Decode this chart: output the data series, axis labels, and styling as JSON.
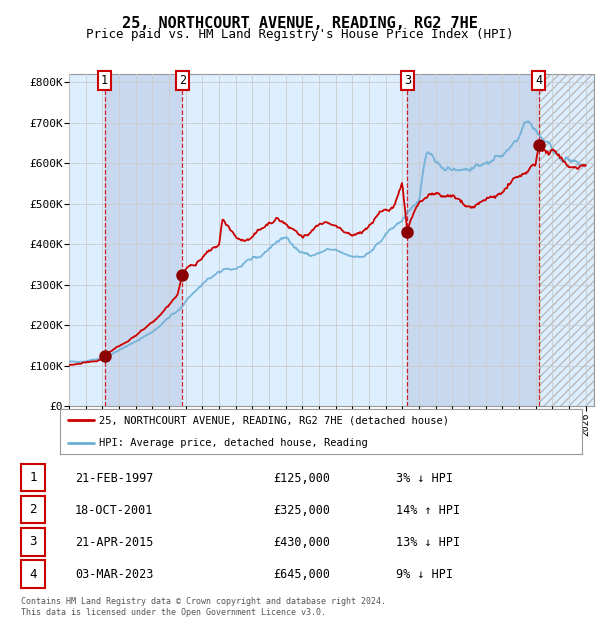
{
  "title": "25, NORTHCOURT AVENUE, READING, RG2 7HE",
  "subtitle": "Price paid vs. HM Land Registry's House Price Index (HPI)",
  "title_fontsize": 11,
  "subtitle_fontsize": 9,
  "ylim": [
    0,
    820000
  ],
  "yticks": [
    0,
    100000,
    200000,
    300000,
    400000,
    500000,
    600000,
    700000,
    800000
  ],
  "ytick_labels": [
    "£0",
    "£100K",
    "£200K",
    "£300K",
    "£400K",
    "£500K",
    "£600K",
    "£700K",
    "£800K"
  ],
  "xlim_start": 1995.0,
  "xlim_end": 2026.5,
  "hpi_line_color": "#6baed6",
  "price_line_color": "#cc0000",
  "dot_color": "#8b0000",
  "grid_color": "#cccccc",
  "bg_light": "#ddeeff",
  "bg_dark": "#c8d8ee",
  "transactions": [
    {
      "num": 1,
      "date_x": 1997.13,
      "price": 125000,
      "label": "1"
    },
    {
      "num": 2,
      "date_x": 2001.8,
      "price": 325000,
      "label": "2"
    },
    {
      "num": 3,
      "date_x": 2015.3,
      "price": 430000,
      "label": "3"
    },
    {
      "num": 4,
      "date_x": 2023.17,
      "price": 645000,
      "label": "4"
    }
  ],
  "legend_price_label": "25, NORTHCOURT AVENUE, READING, RG2 7HE (detached house)",
  "legend_hpi_label": "HPI: Average price, detached house, Reading",
  "table_rows": [
    {
      "num": "1",
      "date": "21-FEB-1997",
      "price": "£125,000",
      "hpi": "3% ↓ HPI"
    },
    {
      "num": "2",
      "date": "18-OCT-2001",
      "price": "£325,000",
      "hpi": "14% ↑ HPI"
    },
    {
      "num": "3",
      "date": "21-APR-2015",
      "price": "£430,000",
      "hpi": "13% ↓ HPI"
    },
    {
      "num": "4",
      "date": "03-MAR-2023",
      "price": "£645,000",
      "hpi": "9% ↓ HPI"
    }
  ],
  "footer": "Contains HM Land Registry data © Crown copyright and database right 2024.\nThis data is licensed under the Open Government Licence v3.0.",
  "hpi_points": [
    [
      1995.0,
      108000
    ],
    [
      1995.5,
      110000
    ],
    [
      1996.0,
      113000
    ],
    [
      1996.5,
      116000
    ],
    [
      1997.0,
      120000
    ],
    [
      1997.13,
      122000
    ],
    [
      1997.5,
      128000
    ],
    [
      1998.0,
      138000
    ],
    [
      1998.5,
      148000
    ],
    [
      1999.0,
      160000
    ],
    [
      1999.5,
      172000
    ],
    [
      2000.0,
      185000
    ],
    [
      2000.5,
      200000
    ],
    [
      2001.0,
      218000
    ],
    [
      2001.5,
      235000
    ],
    [
      2001.8,
      248000
    ],
    [
      2002.0,
      262000
    ],
    [
      2002.5,
      282000
    ],
    [
      2003.0,
      300000
    ],
    [
      2003.5,
      315000
    ],
    [
      2004.0,
      328000
    ],
    [
      2004.5,
      338000
    ],
    [
      2005.0,
      342000
    ],
    [
      2005.5,
      348000
    ],
    [
      2006.0,
      358000
    ],
    [
      2006.5,
      372000
    ],
    [
      2007.0,
      390000
    ],
    [
      2007.5,
      408000
    ],
    [
      2008.0,
      415000
    ],
    [
      2008.5,
      400000
    ],
    [
      2009.0,
      382000
    ],
    [
      2009.5,
      370000
    ],
    [
      2010.0,
      378000
    ],
    [
      2010.5,
      385000
    ],
    [
      2011.0,
      380000
    ],
    [
      2011.5,
      372000
    ],
    [
      2012.0,
      368000
    ],
    [
      2012.5,
      372000
    ],
    [
      2013.0,
      382000
    ],
    [
      2013.5,
      398000
    ],
    [
      2014.0,
      418000
    ],
    [
      2014.5,
      440000
    ],
    [
      2015.0,
      462000
    ],
    [
      2015.3,
      475000
    ],
    [
      2015.5,
      488000
    ],
    [
      2016.0,
      510000
    ],
    [
      2016.3,
      595000
    ],
    [
      2016.5,
      618000
    ],
    [
      2016.7,
      608000
    ],
    [
      2017.0,
      598000
    ],
    [
      2017.5,
      592000
    ],
    [
      2018.0,
      595000
    ],
    [
      2018.5,
      590000
    ],
    [
      2019.0,
      588000
    ],
    [
      2019.5,
      592000
    ],
    [
      2020.0,
      598000
    ],
    [
      2020.5,
      610000
    ],
    [
      2021.0,
      625000
    ],
    [
      2021.5,
      648000
    ],
    [
      2022.0,
      672000
    ],
    [
      2022.3,
      715000
    ],
    [
      2022.5,
      720000
    ],
    [
      2022.7,
      705000
    ],
    [
      2023.0,
      688000
    ],
    [
      2023.17,
      672000
    ],
    [
      2023.5,
      658000
    ],
    [
      2024.0,
      635000
    ],
    [
      2024.5,
      615000
    ],
    [
      2025.0,
      605000
    ],
    [
      2025.5,
      600000
    ],
    [
      2026.0,
      598000
    ]
  ],
  "pp_points": [
    [
      1995.0,
      100000
    ],
    [
      1995.5,
      103000
    ],
    [
      1996.0,
      106000
    ],
    [
      1996.5,
      110000
    ],
    [
      1997.0,
      118000
    ],
    [
      1997.13,
      125000
    ],
    [
      1997.5,
      135000
    ],
    [
      1998.0,
      148000
    ],
    [
      1998.5,
      162000
    ],
    [
      1999.0,
      175000
    ],
    [
      1999.5,
      190000
    ],
    [
      2000.0,
      208000
    ],
    [
      2000.5,
      228000
    ],
    [
      2001.0,
      250000
    ],
    [
      2001.5,
      278000
    ],
    [
      2001.8,
      325000
    ],
    [
      2002.0,
      340000
    ],
    [
      2002.5,
      355000
    ],
    [
      2003.0,
      368000
    ],
    [
      2003.5,
      378000
    ],
    [
      2004.0,
      395000
    ],
    [
      2004.2,
      460000
    ],
    [
      2004.5,
      445000
    ],
    [
      2005.0,
      418000
    ],
    [
      2005.5,
      408000
    ],
    [
      2006.0,
      415000
    ],
    [
      2006.5,
      430000
    ],
    [
      2007.0,
      455000
    ],
    [
      2007.5,
      460000
    ],
    [
      2008.0,
      448000
    ],
    [
      2008.5,
      432000
    ],
    [
      2009.0,
      415000
    ],
    [
      2009.5,
      420000
    ],
    [
      2010.0,
      435000
    ],
    [
      2010.5,
      448000
    ],
    [
      2011.0,
      438000
    ],
    [
      2011.5,
      428000
    ],
    [
      2012.0,
      425000
    ],
    [
      2012.5,
      432000
    ],
    [
      2013.0,
      445000
    ],
    [
      2013.5,
      462000
    ],
    [
      2014.0,
      482000
    ],
    [
      2014.5,
      505000
    ],
    [
      2015.0,
      555000
    ],
    [
      2015.3,
      430000
    ],
    [
      2015.5,
      460000
    ],
    [
      2016.0,
      490000
    ],
    [
      2016.5,
      510000
    ],
    [
      2017.0,
      522000
    ],
    [
      2017.5,
      518000
    ],
    [
      2018.0,
      512000
    ],
    [
      2018.5,
      505000
    ],
    [
      2019.0,
      498000
    ],
    [
      2019.5,
      500000
    ],
    [
      2020.0,
      505000
    ],
    [
      2020.5,
      515000
    ],
    [
      2021.0,
      528000
    ],
    [
      2021.5,
      542000
    ],
    [
      2022.0,
      558000
    ],
    [
      2022.5,
      572000
    ],
    [
      2023.0,
      595000
    ],
    [
      2023.17,
      645000
    ],
    [
      2023.5,
      638000
    ],
    [
      2024.0,
      622000
    ],
    [
      2024.5,
      608000
    ],
    [
      2025.0,
      600000
    ],
    [
      2025.5,
      596000
    ],
    [
      2026.0,
      592000
    ]
  ]
}
